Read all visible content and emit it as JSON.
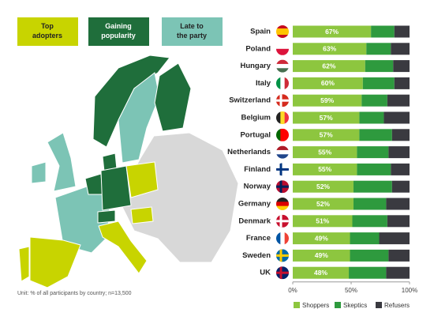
{
  "chart_data": {
    "type": "bar",
    "orientation": "horizontal",
    "stacked": true,
    "categories": [
      "Spain",
      "Poland",
      "Hungary",
      "Italy",
      "Switzerland",
      "Belgium",
      "Portugal",
      "Netherlands",
      "Finland",
      "Norway",
      "Germany",
      "Denmark",
      "France",
      "Sweden",
      "UK"
    ],
    "series": [
      {
        "name": "Shoppers",
        "color": "#8dc63f",
        "values": [
          67,
          63,
          62,
          60,
          59,
          57,
          57,
          55,
          55,
          52,
          52,
          51,
          49,
          49,
          48
        ],
        "value_labels": [
          "67%",
          "63%",
          "62%",
          "60%",
          "59%",
          "57%",
          "57%",
          "55%",
          "55%",
          "52%",
          "52%",
          "51%",
          "49%",
          "49%",
          "48%"
        ]
      },
      {
        "name": "Skeptics",
        "color": "#2e9a3e",
        "values": [
          20,
          21,
          24,
          27,
          22,
          21,
          28,
          27,
          29,
          33,
          28,
          30,
          25,
          33,
          32
        ]
      },
      {
        "name": "Refusers",
        "color": "#3a3a40",
        "values": [
          13,
          16,
          14,
          13,
          19,
          22,
          15,
          18,
          16,
          15,
          20,
          19,
          26,
          18,
          20
        ]
      }
    ],
    "xlim": [
      0,
      100
    ],
    "xticks": [
      {
        "value": 0,
        "label": "0%"
      },
      {
        "value": 50,
        "label": "50%"
      },
      {
        "value": 100,
        "label": "100%"
      }
    ]
  },
  "map_legend": [
    {
      "label": "Top adopters",
      "color": "#c8d400"
    },
    {
      "label": "Gaining popularity",
      "color": "#1f6e3b"
    },
    {
      "label": "Late to the party",
      "color": "#7cc4b5"
    }
  ],
  "note": "Unit: % of all participants by country; n=13,500"
}
